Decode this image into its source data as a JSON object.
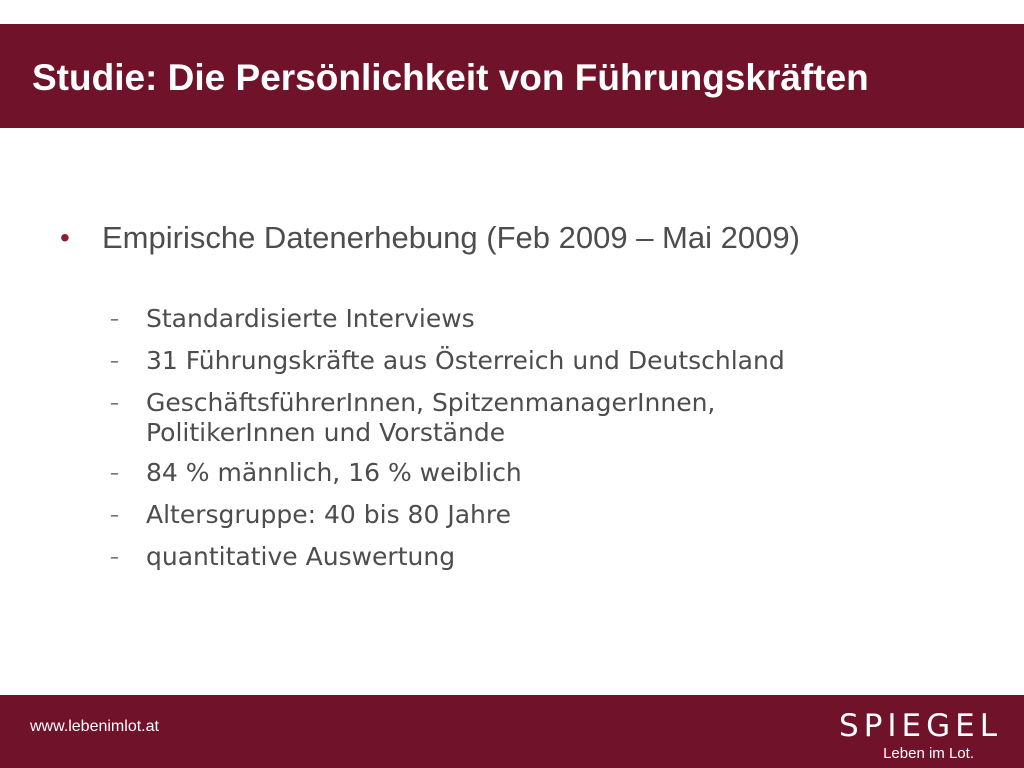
{
  "colors": {
    "brand": "#70122a",
    "bullet": "#8b1f35",
    "text": "#4d4d4d"
  },
  "header": {
    "title": "Studie: Die Persönlichkeit von Führungskräften"
  },
  "main": {
    "bullet_icon": "bullet-dot",
    "bullet": "Empirische Datenerhebung (Feb 2009 – Mai 2009)",
    "sub_items": [
      {
        "text": "Standardisierte Interviews"
      },
      {
        "text": "31 Führungskräfte aus Österreich und Deutschland"
      },
      {
        "text": "GeschäftsführerInnen, SpitzenmanagerInnen,\nPolitikerInnen und Vorstände"
      },
      {
        "text": "84 % männlich, 16 % weiblich"
      },
      {
        "text": "Altersgruppe: 40 bis 80 Jahre"
      },
      {
        "text": "quantitative Auswertung"
      }
    ]
  },
  "footer": {
    "url": "www.lebenimlot.at",
    "logo": {
      "word": "SPIEGEL",
      "tagline": "Leben im Lot."
    }
  }
}
